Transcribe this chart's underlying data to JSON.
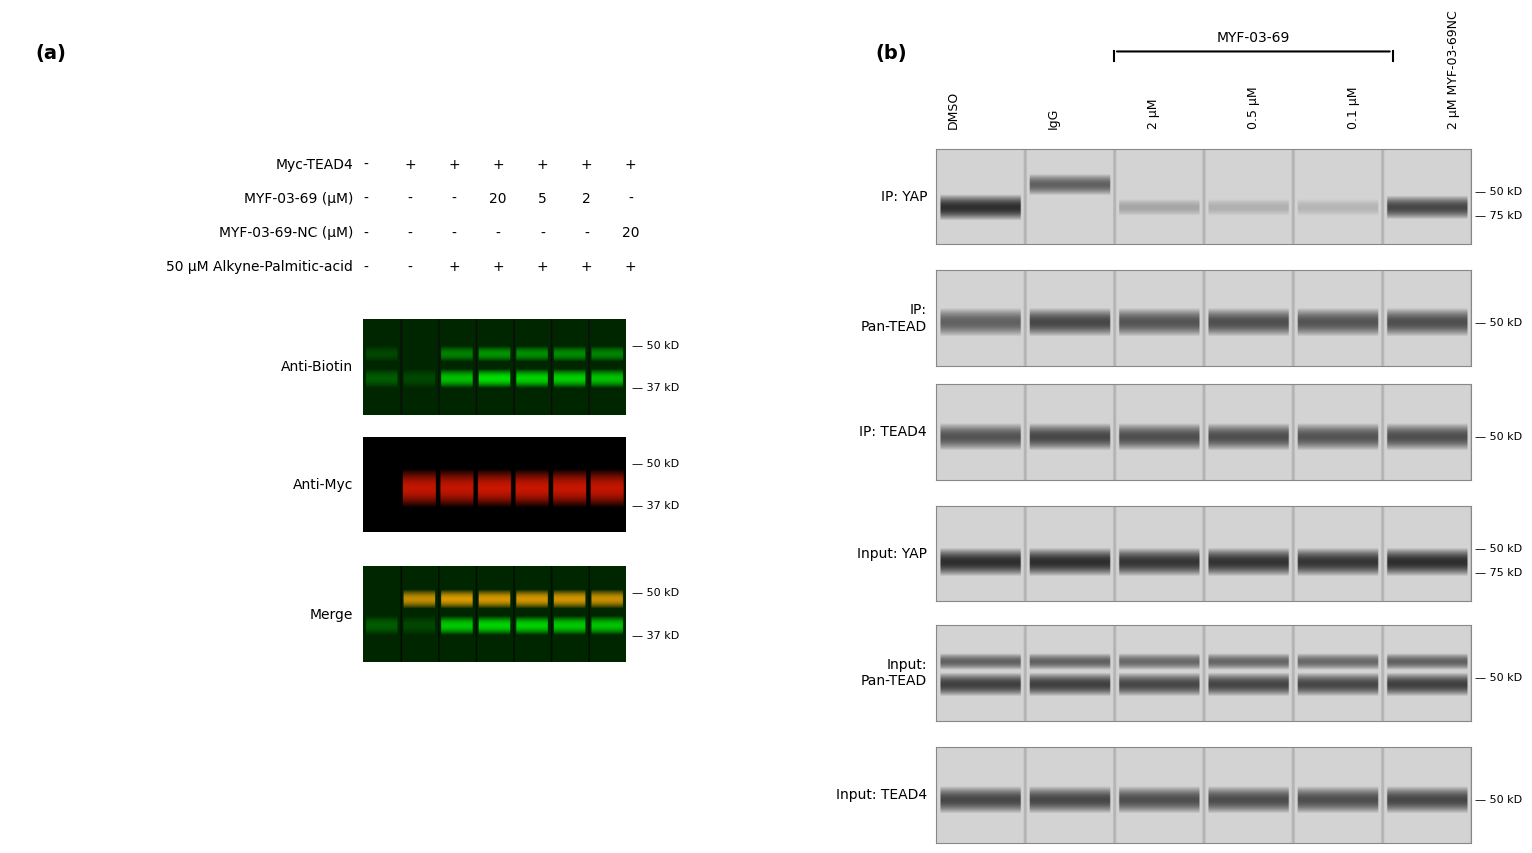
{
  "panel_a_label": "(a)",
  "panel_b_label": "(b)",
  "row_labels_a": [
    "Myc-TEAD4",
    "MYF-03-69 (μM)",
    "MYF-03-69-NC (μM)",
    "50 μM Alkyne-Palmitic-acid"
  ],
  "col_values_a": [
    [
      "-",
      "-",
      "-",
      "-"
    ],
    [
      "+",
      "-",
      "-",
      "-"
    ],
    [
      "+",
      "-",
      "-",
      "+"
    ],
    [
      "+",
      "20",
      "-",
      "+"
    ],
    [
      "+",
      "5",
      "-",
      "+"
    ],
    [
      "+",
      "2",
      "-",
      "+"
    ],
    [
      "+",
      "-",
      "20",
      "+"
    ]
  ],
  "blot_labels_a": [
    "Anti-Biotin",
    "Anti-Myc",
    "Merge"
  ],
  "col_labels_b": [
    "DMSO",
    "IgG",
    "2 μM",
    "0.5 μM",
    "0.1 μM",
    "2 μM MYF-03-69NC"
  ],
  "myf_bracket_label": "MYF-03-69",
  "blot_labels_b": [
    "IP: YAP",
    "IP:\nPan-TEAD",
    "IP: TEAD4",
    "Input: YAP",
    "Input:\nPan-TEAD",
    "Input: TEAD4"
  ],
  "bg_color": "#ffffff"
}
